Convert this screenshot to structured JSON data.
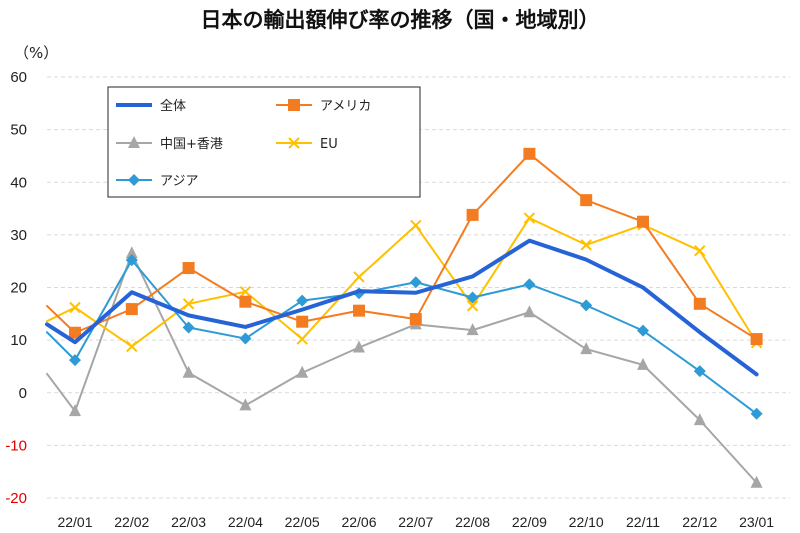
{
  "chart_data": {
    "type": "line",
    "title": "日本の輸出額伸び率の推移（国・地域別）",
    "unit_label": "（%）",
    "categories": [
      "22/01",
      "22/02",
      "22/03",
      "22/04",
      "22/05",
      "22/06",
      "22/07",
      "22/08",
      "22/09",
      "22/10",
      "22/11",
      "22/12",
      "23/01"
    ],
    "ylim": [
      -20,
      60
    ],
    "yticks": [
      60,
      50,
      40,
      30,
      20,
      10,
      0,
      -10,
      -20
    ],
    "negative_tick_color": "#e00000",
    "positive_tick_color": "#222222",
    "grid": true,
    "legend_position": "top-left-inside",
    "series": [
      {
        "name": "全体",
        "color": "#2563d6",
        "marker": "none",
        "width": 4,
        "lead": 13,
        "values": [
          9.6,
          19.1,
          14.7,
          12.5,
          15.8,
          19.3,
          19.0,
          22.1,
          28.9,
          25.3,
          20.0,
          11.5,
          3.5
        ]
      },
      {
        "name": "アメリカ",
        "color": "#f47c20",
        "marker": "square",
        "width": 2,
        "lead": 16.5,
        "values": [
          11.4,
          15.9,
          23.7,
          17.3,
          13.5,
          15.6,
          14.0,
          33.8,
          45.4,
          36.6,
          32.5,
          16.9,
          10.2
        ]
      },
      {
        "name": "中国+香港",
        "color": "#a6a6a6",
        "marker": "triangle",
        "width": 2,
        "lead": 3.6,
        "values": [
          -3.5,
          26.5,
          3.8,
          -2.4,
          3.8,
          8.6,
          13.0,
          11.9,
          15.3,
          8.3,
          5.3,
          -5.2,
          -17.1
        ]
      },
      {
        "name": "EU",
        "color": "#ffc000",
        "marker": "x",
        "width": 2,
        "lead": 13.6,
        "values": [
          16.2,
          8.8,
          16.9,
          19.2,
          10.2,
          22.0,
          31.8,
          16.5,
          33.2,
          28.1,
          31.9,
          27.0,
          9.5
        ]
      },
      {
        "name": "アジア",
        "color": "#2e9bd6",
        "marker": "diamond",
        "width": 2,
        "lead": 11.5,
        "values": [
          6.2,
          25.2,
          12.4,
          10.3,
          17.5,
          18.9,
          21.0,
          18.1,
          20.6,
          16.6,
          11.8,
          4.1,
          -4.0
        ]
      }
    ]
  }
}
